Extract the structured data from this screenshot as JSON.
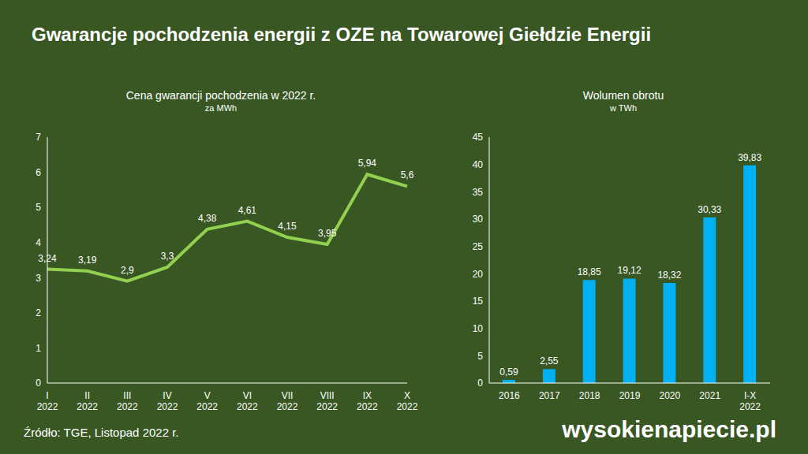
{
  "title": "Gwarancje pochodzenia energii z OZE na Towarowej Giełdzie Energii",
  "source": "Źródło: TGE, Listopad 2022 r.",
  "logo": "wysokienapiecie.pl",
  "chart_data": [
    {
      "type": "line",
      "title": "Cena gwarancji pochodzenia w 2022 r.",
      "subtitle": "za MWh",
      "categories": [
        "I 2022",
        "II 2022",
        "III 2022",
        "IV 2022",
        "V 2022",
        "VI 2022",
        "VII 2022",
        "VIII 2022",
        "IX 2022",
        "X 2022"
      ],
      "values": [
        3.24,
        3.19,
        2.9,
        3.3,
        4.38,
        4.61,
        4.15,
        3.95,
        5.94,
        5.6
      ],
      "value_labels": [
        "3,24",
        "3,19",
        "2,9",
        "3,3",
        "4,38",
        "4,61",
        "4,15",
        "3,95",
        "5,94",
        "5,6"
      ],
      "color": "#92d050",
      "ylim": [
        0,
        7
      ],
      "yticks": [
        0,
        1,
        2,
        3,
        4,
        5,
        6,
        7
      ],
      "grid": false,
      "data_labels": true
    },
    {
      "type": "bar",
      "title": "Wolumen obrotu",
      "subtitle": "w TWh",
      "categories": [
        "2016",
        "2017",
        "2018",
        "2019",
        "2020",
        "2021",
        "I-X 2022"
      ],
      "values": [
        0.59,
        2.55,
        18.85,
        19.12,
        18.32,
        30.33,
        39.83
      ],
      "value_labels": [
        "0,59",
        "2,55",
        "18,85",
        "19,12",
        "18,32",
        "30,33",
        "39,83"
      ],
      "color": "#00b0f0",
      "ylim": [
        0,
        45
      ],
      "yticks": [
        0,
        5,
        10,
        15,
        20,
        25,
        30,
        35,
        40,
        45
      ],
      "grid": false,
      "data_labels": true
    }
  ]
}
